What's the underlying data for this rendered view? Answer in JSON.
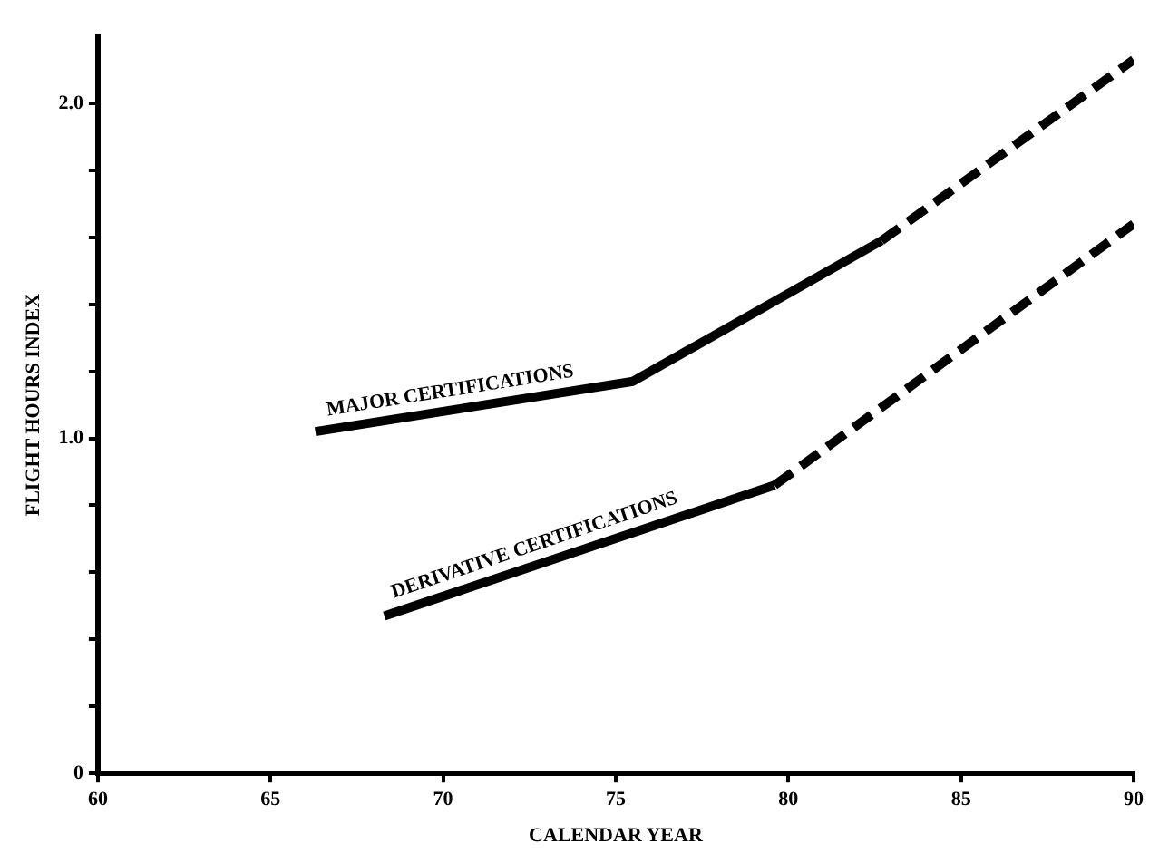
{
  "chart_data": {
    "type": "line",
    "xlabel": "CALENDAR YEAR",
    "ylabel": "FLIGHT HOURS INDEX",
    "xlim": [
      60,
      90
    ],
    "xticks": [
      60,
      65,
      70,
      75,
      80,
      85,
      90
    ],
    "ylim": [
      0,
      2.2
    ],
    "yticks": [
      0,
      {
        "value": 0.2,
        "label": null
      },
      {
        "value": 0.4,
        "label": null
      },
      {
        "value": 0.6,
        "label": null
      },
      {
        "value": 0.8,
        "label": null
      },
      {
        "value": 1.0,
        "label": "1.0"
      },
      {
        "value": 1.2,
        "label": null
      },
      {
        "value": 1.4,
        "label": null
      },
      {
        "value": 1.6,
        "label": null
      },
      {
        "value": 1.8,
        "label": null
      },
      {
        "value": 2.0,
        "label": "2.0"
      }
    ],
    "grid": false,
    "legend": false,
    "marker": "none",
    "series": [
      {
        "name": "MAJOR CERTIFICATIONS",
        "color": "#000000",
        "line_style": "solid",
        "x": [
          66.3,
          75.5,
          82.7
        ],
        "values": [
          1.02,
          1.17,
          1.59
        ]
      },
      {
        "color": "#000000",
        "line_style": "dashed",
        "x": [
          82.7,
          90
        ],
        "values": [
          1.59,
          2.13
        ]
      },
      {
        "name": "DERIVATIVE CERTIFICATIONS",
        "color": "#000000",
        "line_style": "solid",
        "x": [
          68.3,
          79.6
        ],
        "values": [
          0.47,
          0.86
        ]
      },
      {
        "color": "#000000",
        "line_style": "dashed",
        "x": [
          79.6,
          90
        ],
        "values": [
          0.86,
          1.64
        ]
      }
    ]
  }
}
